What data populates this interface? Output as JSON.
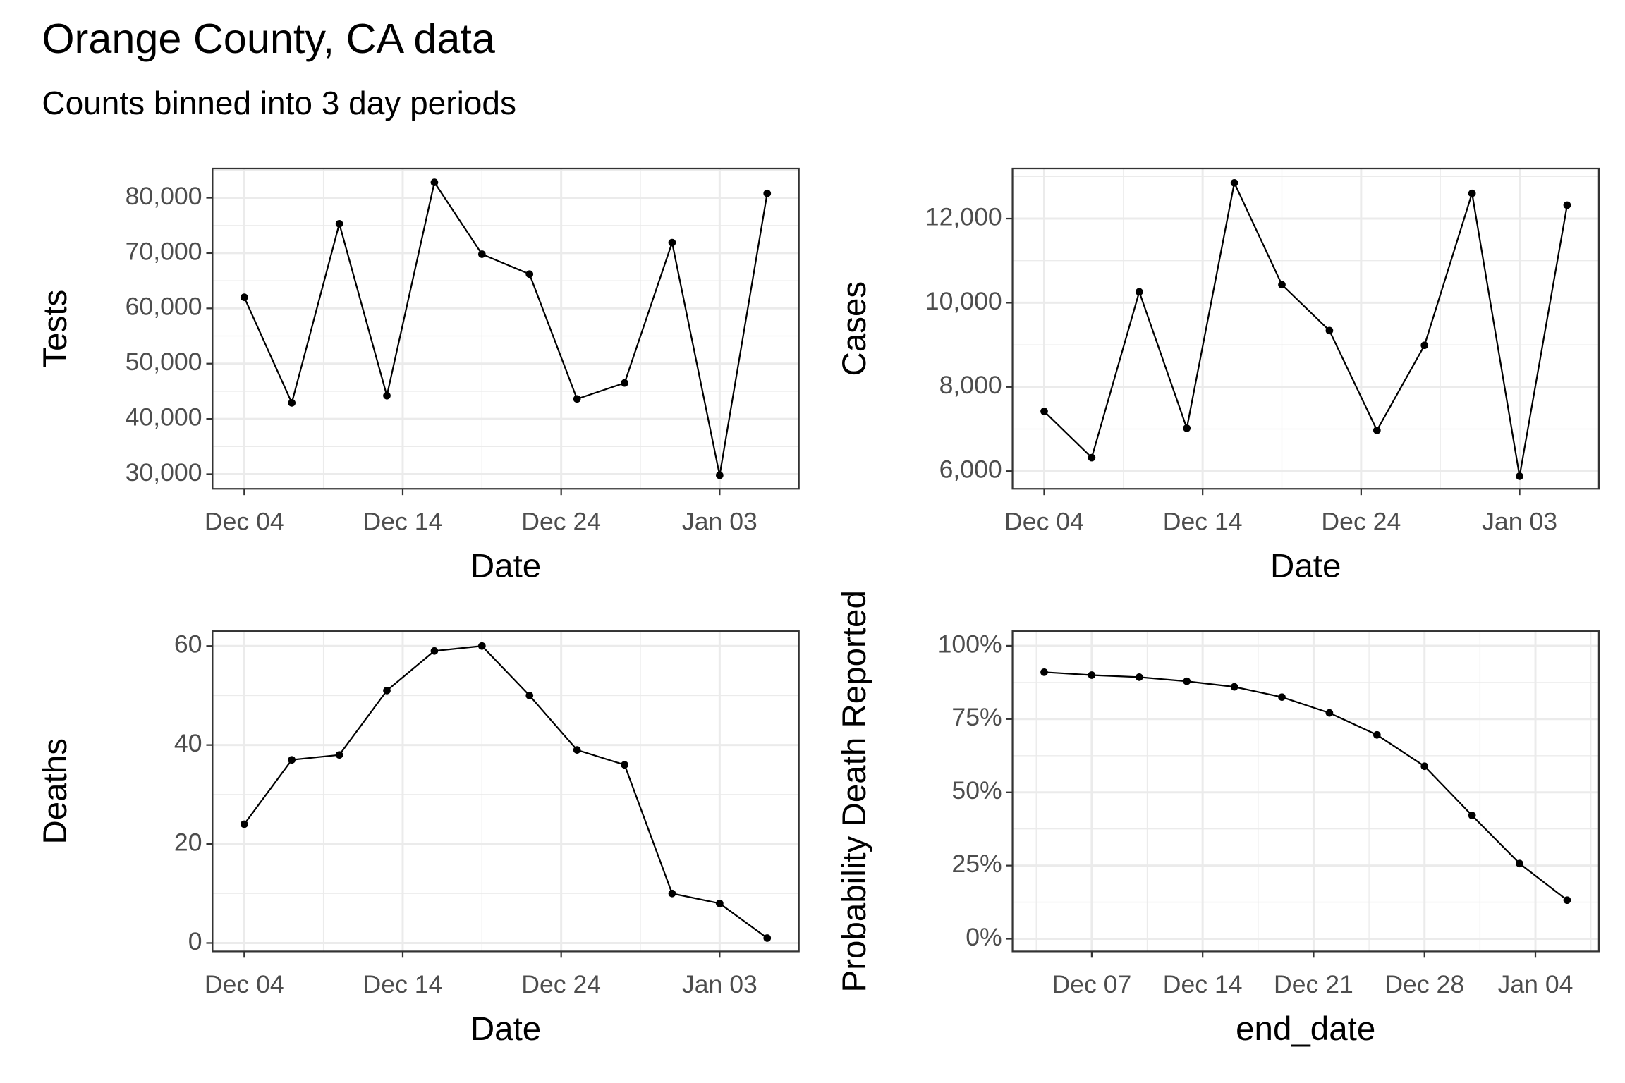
{
  "title": "Orange County, CA data",
  "subtitle": "Counts binned into 3 day periods",
  "chart_data": [
    {
      "type": "line",
      "xlabel": "Date",
      "ylabel": "Tests",
      "color": "#000000",
      "grid": true,
      "minor_grid": true,
      "x": [
        "Dec 04",
        "Dec 07",
        "Dec 10",
        "Dec 13",
        "Dec 16",
        "Dec 19",
        "Dec 22",
        "Dec 25",
        "Dec 28",
        "Dec 31",
        "Jan 03",
        "Jan 06"
      ],
      "values": [
        62000,
        42900,
        75300,
        44200,
        82800,
        69800,
        66200,
        43600,
        46500,
        71900,
        29800,
        80800
      ],
      "xlim": [
        "Dec 02",
        "Jan 08"
      ],
      "xticks": [
        "Dec 04",
        "Dec 14",
        "Dec 24",
        "Jan 03"
      ],
      "ylim": [
        27350,
        85300
      ],
      "yticks": [
        {
          "value": 30000,
          "label": "30,000"
        },
        {
          "value": 40000,
          "label": "40,000"
        },
        {
          "value": 50000,
          "label": "50,000"
        },
        {
          "value": 60000,
          "label": "60,000"
        },
        {
          "value": 70000,
          "label": "70,000"
        },
        {
          "value": 80000,
          "label": "80,000"
        }
      ]
    },
    {
      "type": "line",
      "xlabel": "Date",
      "ylabel": "Cases",
      "color": "#000000",
      "grid": true,
      "minor_grid": true,
      "x": [
        "Dec 04",
        "Dec 07",
        "Dec 10",
        "Dec 13",
        "Dec 16",
        "Dec 19",
        "Dec 22",
        "Dec 25",
        "Dec 28",
        "Dec 31",
        "Jan 03",
        "Jan 06"
      ],
      "values": [
        7420,
        6320,
        10260,
        7020,
        12850,
        10430,
        9340,
        6970,
        8990,
        12600,
        5880,
        12320
      ],
      "xlim": [
        "Dec 02",
        "Jan 08"
      ],
      "xticks": [
        "Dec 04",
        "Dec 14",
        "Dec 24",
        "Jan 03"
      ],
      "ylim": [
        5580,
        13190
      ],
      "yticks": [
        {
          "value": 6000,
          "label": "6,000"
        },
        {
          "value": 8000,
          "label": "8,000"
        },
        {
          "value": 10000,
          "label": "10,000"
        },
        {
          "value": 12000,
          "label": "12,000"
        }
      ]
    },
    {
      "type": "line",
      "xlabel": "Date",
      "ylabel": "Deaths",
      "color": "#000000",
      "grid": true,
      "minor_grid": true,
      "x": [
        "Dec 04",
        "Dec 07",
        "Dec 10",
        "Dec 13",
        "Dec 16",
        "Dec 19",
        "Dec 22",
        "Dec 25",
        "Dec 28",
        "Dec 31",
        "Jan 03",
        "Jan 06"
      ],
      "values": [
        24,
        37,
        38,
        51,
        59,
        60,
        50,
        39,
        36,
        10,
        8,
        1
      ],
      "xlim": [
        "Dec 02",
        "Jan 08"
      ],
      "xticks": [
        "Dec 04",
        "Dec 14",
        "Dec 24",
        "Jan 03"
      ],
      "ylim": [
        -1.7,
        63
      ],
      "yticks": [
        0,
        20,
        40,
        60
      ]
    },
    {
      "type": "line",
      "xlabel": "end_date",
      "ylabel": "Probability Death Reported",
      "color": "#000000",
      "grid": true,
      "minor_grid": true,
      "x": [
        "Dec 04",
        "Dec 07",
        "Dec 10",
        "Dec 13",
        "Dec 16",
        "Dec 19",
        "Dec 22",
        "Dec 25",
        "Dec 28",
        "Dec 31",
        "Jan 03",
        "Jan 06"
      ],
      "values": [
        91,
        90,
        89.3,
        87.9,
        86,
        82.5,
        77.1,
        69.6,
        58.9,
        42.1,
        25.7,
        13.2
      ],
      "xlim": [
        "Dec 02",
        "Jan 08"
      ],
      "xticks": [
        "Dec 07",
        "Dec 14",
        "Dec 21",
        "Dec 28",
        "Jan 04"
      ],
      "ylim": [
        -4.3,
        105
      ],
      "yticks": [
        {
          "value": 0,
          "label": "0%"
        },
        {
          "value": 25,
          "label": "25%"
        },
        {
          "value": 50,
          "label": "50%"
        },
        {
          "value": 75,
          "label": "75%"
        },
        {
          "value": 100,
          "label": "100%"
        }
      ]
    }
  ]
}
